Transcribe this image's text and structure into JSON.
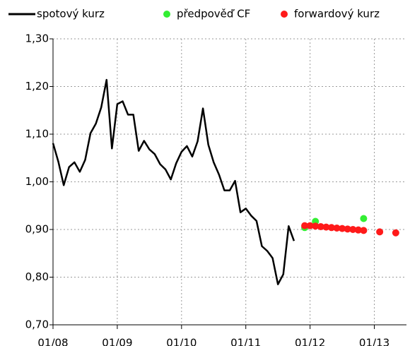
{
  "chart_data": {
    "type": "line",
    "xlim": [
      "01/08",
      "07/13"
    ],
    "xticks": [
      "01/08",
      "01/09",
      "01/10",
      "01/11",
      "01/12",
      "01/13"
    ],
    "ylim": [
      0.7,
      1.3
    ],
    "yticks": [
      {
        "value": 0.7,
        "label": "0,70"
      },
      {
        "value": 0.8,
        "label": "0,80"
      },
      {
        "value": 0.9,
        "label": "0,90"
      },
      {
        "value": 1.0,
        "label": "1,00"
      },
      {
        "value": 1.1,
        "label": "1,10"
      },
      {
        "value": 1.2,
        "label": "1,20"
      },
      {
        "value": 1.3,
        "label": "1,30"
      }
    ],
    "grid": true,
    "legend": "top",
    "series": [
      {
        "name": "spotový kurz",
        "type": "line",
        "color": "#000000",
        "x": [
          "01/08",
          "02/08",
          "03/08",
          "04/08",
          "05/08",
          "06/08",
          "07/08",
          "08/08",
          "09/08",
          "10/08",
          "11/08",
          "12/08",
          "01/09",
          "02/09",
          "03/09",
          "04/09",
          "05/09",
          "06/09",
          "07/09",
          "08/09",
          "09/09",
          "10/09",
          "11/09",
          "12/09",
          "01/10",
          "02/10",
          "03/10",
          "04/10",
          "05/10",
          "06/10",
          "07/10",
          "08/10",
          "09/10",
          "10/10",
          "11/10",
          "12/10",
          "01/11",
          "02/11",
          "03/11",
          "04/11",
          "05/11",
          "06/11",
          "07/11",
          "08/11",
          "09/11",
          "10/11"
        ],
        "values": [
          1.081,
          1.042,
          0.993,
          1.031,
          1.041,
          1.021,
          1.046,
          1.102,
          1.122,
          1.156,
          1.214,
          1.07,
          1.163,
          1.169,
          1.141,
          1.141,
          1.065,
          1.086,
          1.068,
          1.058,
          1.037,
          1.026,
          1.005,
          1.039,
          1.063,
          1.075,
          1.053,
          1.085,
          1.154,
          1.078,
          1.041,
          1.015,
          0.982,
          0.982,
          1.002,
          0.936,
          0.944,
          0.929,
          0.918,
          0.865,
          0.855,
          0.84,
          0.785,
          0.806,
          0.907,
          0.876
        ]
      },
      {
        "name": "předpověď CF",
        "type": "scatter",
        "color": "#33ee33",
        "x": [
          "12/11",
          "02/12",
          "11/12"
        ],
        "values": [
          0.904,
          0.917,
          0.923
        ]
      },
      {
        "name": "forwardový kurz",
        "type": "scatter",
        "color": "#ff1a1a",
        "x": [
          "12/11",
          "01/12",
          "02/12",
          "03/12",
          "04/12",
          "05/12",
          "06/12",
          "07/12",
          "08/12",
          "09/12",
          "10/12",
          "11/12",
          "02/13",
          "05/13"
        ],
        "values": [
          0.908,
          0.908,
          0.907,
          0.906,
          0.905,
          0.904,
          0.903,
          0.902,
          0.901,
          0.9,
          0.899,
          0.898,
          0.895,
          0.893
        ]
      }
    ]
  }
}
